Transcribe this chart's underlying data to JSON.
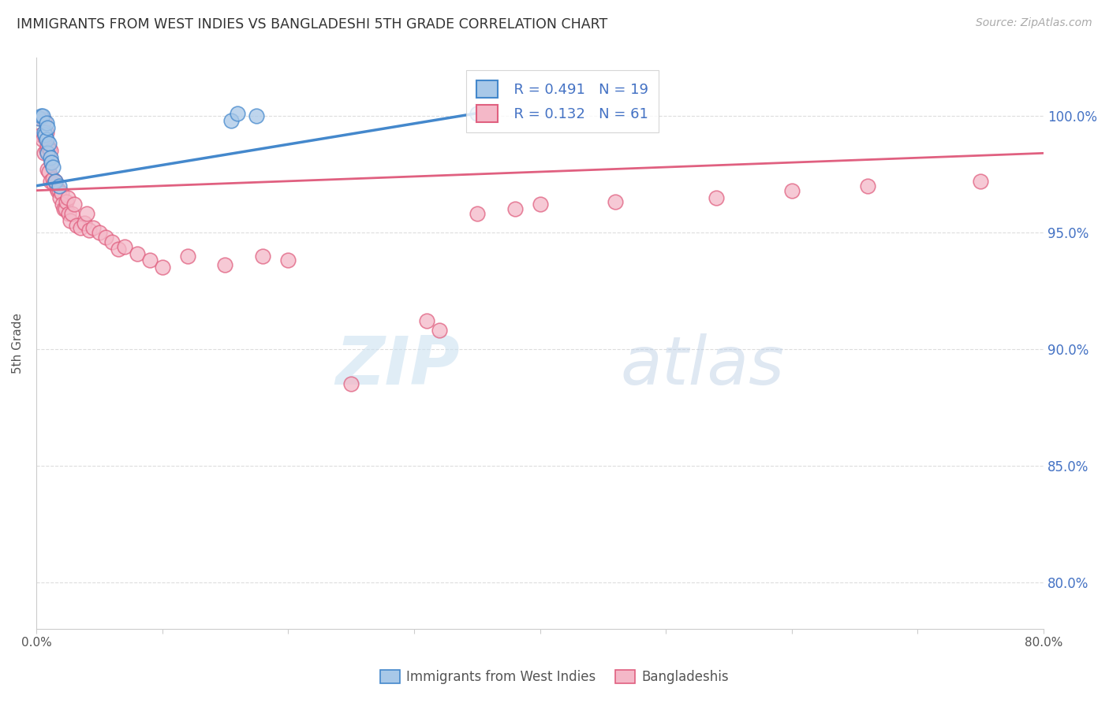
{
  "title": "IMMIGRANTS FROM WEST INDIES VS BANGLADESHI 5TH GRADE CORRELATION CHART",
  "source": "Source: ZipAtlas.com",
  "ylabel": "5th Grade",
  "ytick_labels": [
    "80.0%",
    "85.0%",
    "90.0%",
    "95.0%",
    "100.0%"
  ],
  "ytick_values": [
    0.8,
    0.85,
    0.9,
    0.95,
    1.0
  ],
  "xmin": 0.0,
  "xmax": 0.8,
  "ymin": 0.78,
  "ymax": 1.025,
  "legend_r1": "R = 0.491",
  "legend_n1": "N = 19",
  "legend_r2": "R = 0.132",
  "legend_n2": "N = 61",
  "color_blue": "#a8c8e8",
  "color_pink": "#f4b8c8",
  "color_blue_line": "#4488cc",
  "color_pink_line": "#e06080",
  "color_title": "#333333",
  "color_source": "#aaaaaa",
  "color_axis_right": "#4472c4",
  "color_grid": "#dddddd",
  "blue_x": [
    0.002,
    0.004,
    0.005,
    0.006,
    0.007,
    0.008,
    0.008,
    0.009,
    0.009,
    0.01,
    0.011,
    0.012,
    0.013,
    0.015,
    0.018,
    0.155,
    0.16,
    0.175,
    0.35
  ],
  "blue_y": [
    0.999,
    1.0,
    1.0,
    0.993,
    0.992,
    0.997,
    0.99,
    0.995,
    0.984,
    0.988,
    0.982,
    0.98,
    0.978,
    0.972,
    0.97,
    0.998,
    1.001,
    1.0,
    1.001
  ],
  "pink_x": [
    0.003,
    0.004,
    0.005,
    0.006,
    0.006,
    0.007,
    0.008,
    0.008,
    0.009,
    0.009,
    0.01,
    0.01,
    0.011,
    0.011,
    0.012,
    0.013,
    0.014,
    0.015,
    0.016,
    0.017,
    0.018,
    0.019,
    0.02,
    0.021,
    0.022,
    0.023,
    0.024,
    0.025,
    0.026,
    0.027,
    0.028,
    0.03,
    0.032,
    0.035,
    0.038,
    0.04,
    0.042,
    0.045,
    0.05,
    0.055,
    0.06,
    0.065,
    0.07,
    0.08,
    0.09,
    0.1,
    0.12,
    0.15,
    0.18,
    0.2,
    0.25,
    0.31,
    0.32,
    0.35,
    0.38,
    0.4,
    0.46,
    0.54,
    0.6,
    0.66,
    0.75
  ],
  "pink_y": [
    0.999,
    0.992,
    0.99,
    0.998,
    0.984,
    0.991,
    0.993,
    0.985,
    0.987,
    0.977,
    0.986,
    0.976,
    0.985,
    0.972,
    0.98,
    0.973,
    0.971,
    0.972,
    0.969,
    0.968,
    0.968,
    0.965,
    0.967,
    0.962,
    0.96,
    0.96,
    0.963,
    0.965,
    0.958,
    0.955,
    0.958,
    0.962,
    0.953,
    0.952,
    0.954,
    0.958,
    0.951,
    0.952,
    0.95,
    0.948,
    0.946,
    0.943,
    0.944,
    0.941,
    0.938,
    0.935,
    0.94,
    0.936,
    0.94,
    0.938,
    0.885,
    0.912,
    0.908,
    0.958,
    0.96,
    0.962,
    0.963,
    0.965,
    0.968,
    0.97,
    0.972
  ],
  "blue_line_x0": 0.0,
  "blue_line_x1": 0.36,
  "blue_line_y0": 0.97,
  "blue_line_y1": 1.002,
  "pink_line_x0": 0.0,
  "pink_line_x1": 0.8,
  "pink_line_y0": 0.968,
  "pink_line_y1": 0.984
}
